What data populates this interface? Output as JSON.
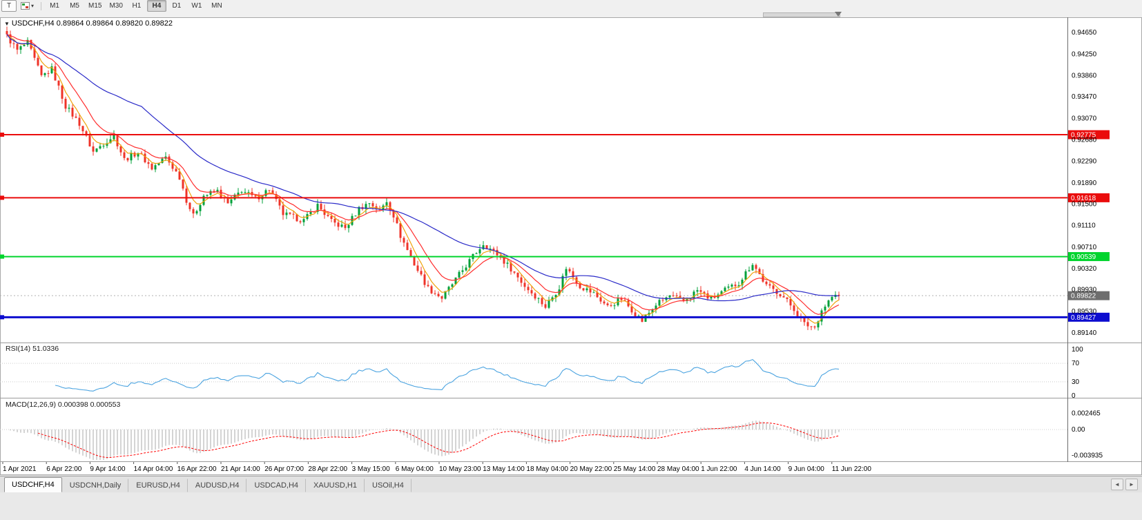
{
  "toolbar": {
    "template_button_label": "T",
    "dropdown_caret": "▾",
    "timeframes": [
      "M1",
      "M5",
      "M15",
      "M30",
      "H1",
      "H4",
      "D1",
      "W1",
      "MN"
    ],
    "active_timeframe": "H4"
  },
  "chart": {
    "menu_icon": "▼",
    "symbol_label": "USDCHF,H4",
    "ohlc_text": "0.89864 0.89864 0.89820 0.89822"
  },
  "indicators": {
    "rsi_label": "RSI(14) 51.0336",
    "macd_label": "MACD(12,26,9) 0.000398 0.000553"
  },
  "price_axis": {
    "labels": [
      "0.94650",
      "0.94250",
      "0.93860",
      "0.93470",
      "0.93070",
      "0.92680",
      "0.92290",
      "0.91890",
      "0.91500",
      "0.91110",
      "0.90710",
      "0.90320",
      "0.89930",
      "0.89530",
      "0.89140"
    ]
  },
  "levels": [
    {
      "price": 0.92775,
      "label": "0.92775",
      "color": "#ea0c0c",
      "width": 2
    },
    {
      "price": 0.91618,
      "label": "0.91618",
      "color": "#ea0c0c",
      "width": 2
    },
    {
      "price": 0.90539,
      "label": "0.90539",
      "color": "#00d42d",
      "width": 2
    },
    {
      "price": 0.89427,
      "label": "0.89427",
      "color": "#0d0dcf",
      "width": 3
    }
  ],
  "current_price": {
    "value": 0.89822,
    "label": "0.89822",
    "tag_color": "#6e6e6e"
  },
  "rsi_axis": {
    "labels": [
      "100",
      "70",
      "30",
      "0"
    ],
    "values": [
      100,
      70,
      30,
      0
    ]
  },
  "macd_axis": {
    "labels": [
      "0.002465",
      "0.00",
      "-0.003935"
    ],
    "values": [
      0.002465,
      0,
      -0.003935
    ]
  },
  "time_axis": {
    "labels": [
      "1 Apr 2021",
      "6 Apr 22:00",
      "9 Apr 14:00",
      "14 Apr 04:00",
      "16 Apr 22:00",
      "21 Apr 14:00",
      "26 Apr 07:00",
      "28 Apr 22:00",
      "3 May 15:00",
      "6 May 04:00",
      "10 May 23:00",
      "13 May 14:00",
      "18 May 04:00",
      "20 May 22:00",
      "25 May 14:00",
      "28 May 04:00",
      "1 Jun 22:00",
      "4 Jun 14:00",
      "9 Jun 04:00",
      "11 Jun 22:00"
    ]
  },
  "tabs": {
    "items": [
      "USDCHF,H4",
      "USDCNH,Daily",
      "EURUSD,H4",
      "AUDUSD,H4",
      "USDCAD,H4",
      "XAUUSD,H1",
      "USOil,H4"
    ],
    "active_index": 0,
    "scroll_left_icon": "◄",
    "scroll_right_icon": "►"
  },
  "theme": {
    "bull": "#00a03a",
    "bear": "#ef3328",
    "ma_fast": "#f0a30a",
    "ma_mid": "#ff2d2d",
    "ma_slow": "#2929c8",
    "rsi_line": "#4aa3e0",
    "macd_hist": "#a8a8a8",
    "macd_signal": "#ff0000",
    "axis_text": "#000000"
  },
  "chart_data": {
    "type": "candlestick",
    "symbol": "USDCHF",
    "timeframe": "H4",
    "title": "USDCHF,H4",
    "bars": 242,
    "last_close": 0.89822,
    "ohlc_current": {
      "open": 0.89864,
      "high": 0.89864,
      "low": 0.8982,
      "close": 0.89822
    },
    "ylim": [
      0.8896,
      0.9492
    ],
    "horizontal_levels": [
      0.92775,
      0.91618,
      0.90539,
      0.89427
    ],
    "ma_periods": {
      "fast": 5,
      "mid": 12,
      "slow": 40
    },
    "rsi": {
      "period": 14,
      "current": 51.0336,
      "levels": [
        30,
        70
      ]
    },
    "macd": {
      "fast": 12,
      "slow": 26,
      "signal": 9,
      "current_values": [
        0.000398,
        0.000553
      ],
      "scale_max": 0.002465,
      "scale_min": -0.003935
    },
    "close_anchors": [
      [
        0,
        0.9458
      ],
      [
        3,
        0.9432
      ],
      [
        6,
        0.9446
      ],
      [
        10,
        0.9384
      ],
      [
        13,
        0.9398
      ],
      [
        17,
        0.933
      ],
      [
        21,
        0.9298
      ],
      [
        25,
        0.9246
      ],
      [
        28,
        0.9262
      ],
      [
        31,
        0.9276
      ],
      [
        34,
        0.9232
      ],
      [
        38,
        0.9246
      ],
      [
        42,
        0.9216
      ],
      [
        46,
        0.9236
      ],
      [
        50,
        0.92
      ],
      [
        52,
        0.9158
      ],
      [
        54,
        0.9128
      ],
      [
        57,
        0.9166
      ],
      [
        61,
        0.9174
      ],
      [
        64,
        0.915
      ],
      [
        68,
        0.9176
      ],
      [
        72,
        0.916
      ],
      [
        76,
        0.9178
      ],
      [
        80,
        0.9132
      ],
      [
        86,
        0.912
      ],
      [
        90,
        0.9148
      ],
      [
        94,
        0.9118
      ],
      [
        98,
        0.9106
      ],
      [
        102,
        0.9142
      ],
      [
        105,
        0.9153
      ],
      [
        108,
        0.9138
      ],
      [
        110,
        0.9156
      ],
      [
        112,
        0.913
      ],
      [
        114,
        0.9092
      ],
      [
        118,
        0.904
      ],
      [
        122,
        0.8996
      ],
      [
        126,
        0.8978
      ],
      [
        130,
        0.9012
      ],
      [
        134,
        0.9046
      ],
      [
        138,
        0.9078
      ],
      [
        142,
        0.9058
      ],
      [
        146,
        0.9032
      ],
      [
        150,
        0.9
      ],
      [
        154,
        0.8976
      ],
      [
        156,
        0.8962
      ],
      [
        160,
        0.8998
      ],
      [
        162,
        0.9034
      ],
      [
        166,
        0.9
      ],
      [
        170,
        0.8986
      ],
      [
        174,
        0.8962
      ],
      [
        178,
        0.8976
      ],
      [
        182,
        0.895
      ],
      [
        184,
        0.8936
      ],
      [
        188,
        0.8966
      ],
      [
        192,
        0.8982
      ],
      [
        196,
        0.8972
      ],
      [
        200,
        0.8992
      ],
      [
        204,
        0.8976
      ],
      [
        208,
        0.8992
      ],
      [
        212,
        0.9006
      ],
      [
        216,
        0.9042
      ],
      [
        220,
        0.9
      ],
      [
        224,
        0.8986
      ],
      [
        228,
        0.8958
      ],
      [
        231,
        0.893
      ],
      [
        234,
        0.8924
      ],
      [
        236,
        0.8956
      ],
      [
        239,
        0.898
      ],
      [
        241,
        0.8982
      ]
    ]
  }
}
